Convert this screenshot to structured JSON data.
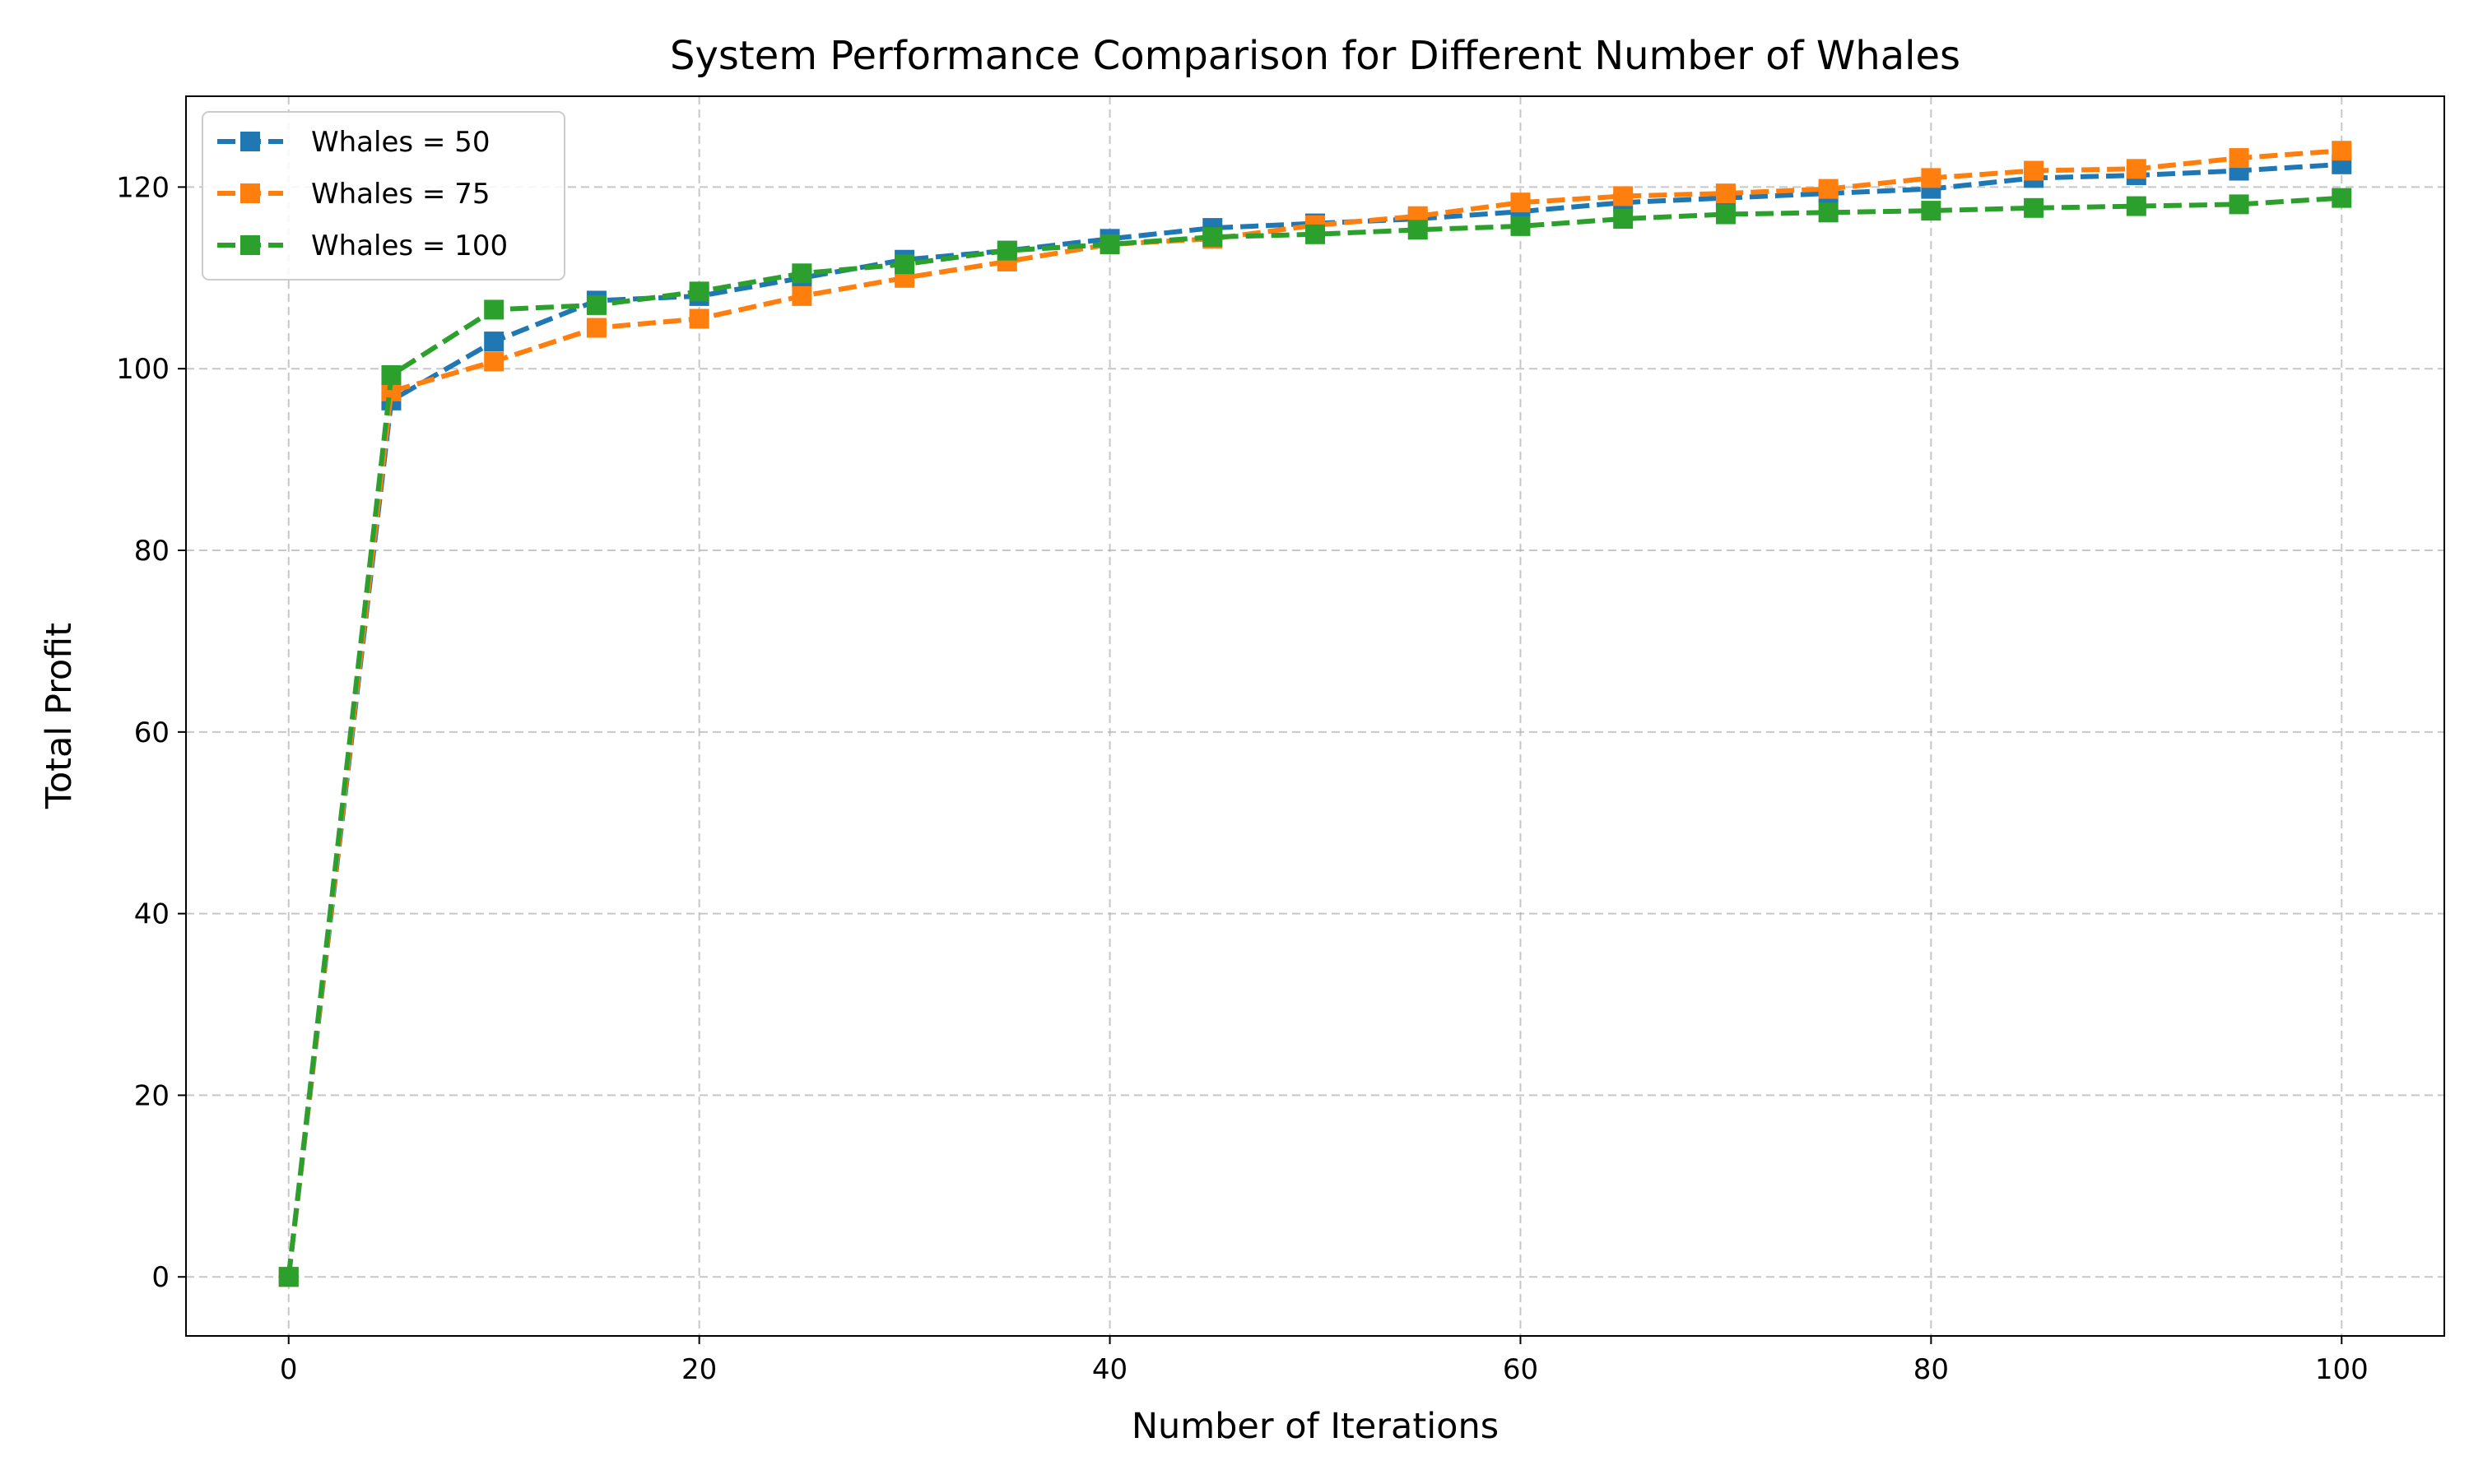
{
  "chart_data": {
    "type": "line",
    "title": "System Performance Comparison for Different Number of Whales",
    "xlabel": "Number of Iterations",
    "ylabel": "Total Profit",
    "xlim": [
      -5,
      105
    ],
    "ylim": [
      -6.5,
      130
    ],
    "xticks": [
      0,
      20,
      40,
      60,
      80,
      100
    ],
    "yticks": [
      0,
      20,
      40,
      60,
      80,
      100,
      120
    ],
    "grid": true,
    "grid_style": "dashed",
    "legend_position": "top-left",
    "line_style": "dashed",
    "marker": "square",
    "x": [
      0,
      5,
      10,
      15,
      20,
      25,
      30,
      35,
      40,
      45,
      50,
      55,
      60,
      65,
      70,
      75,
      80,
      85,
      90,
      95,
      100
    ],
    "series": [
      {
        "name": "Whales = 50",
        "color": "#1f77b4",
        "values": [
          0,
          96.5,
          103,
          107.5,
          108,
          110,
          112,
          113,
          114.3,
          115.5,
          116,
          116.5,
          117.3,
          118.3,
          118.8,
          119.3,
          119.8,
          121,
          121.3,
          121.8,
          122.5
        ]
      },
      {
        "name": "Whales = 75",
        "color": "#ff7f0e",
        "values": [
          0,
          97.5,
          100.8,
          104.5,
          105.5,
          108,
          110,
          111.8,
          113.7,
          114.3,
          115.8,
          116.8,
          118.3,
          119,
          119.3,
          119.8,
          121,
          121.8,
          122,
          123.2,
          124
        ]
      },
      {
        "name": "Whales = 100",
        "color": "#2ca02c",
        "values": [
          0,
          99.3,
          106.5,
          107,
          108.5,
          110.5,
          111.5,
          113,
          113.7,
          114.5,
          114.8,
          115.3,
          115.7,
          116.5,
          117,
          117.2,
          117.4,
          117.7,
          117.9,
          118.1,
          118.8
        ]
      }
    ]
  }
}
